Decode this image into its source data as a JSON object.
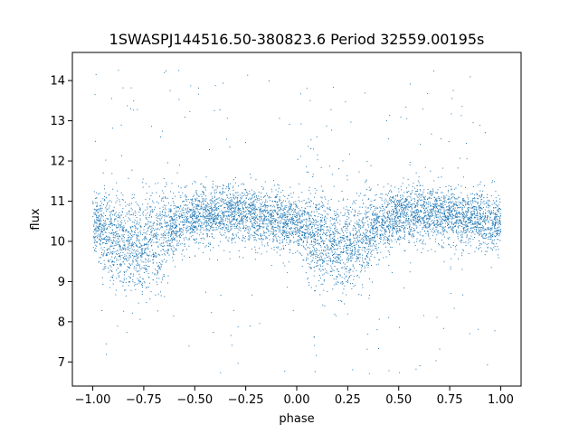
{
  "chart_data": {
    "type": "scatter",
    "title": "1SWASPJ144516.50-380823.6 Period 32559.00195s",
    "xlabel": "phase",
    "ylabel": "flux",
    "xlim": [
      -1.1,
      1.1
    ],
    "ylim": [
      6.4,
      14.7
    ],
    "xticks": [
      -1.0,
      -0.75,
      -0.5,
      -0.25,
      0.0,
      0.25,
      0.5,
      0.75,
      1.0
    ],
    "xtick_labels": [
      "−1.00",
      "−0.75",
      "−0.50",
      "−0.25",
      "0.00",
      "0.25",
      "0.50",
      "0.75",
      "1.00"
    ],
    "yticks": [
      7,
      8,
      9,
      10,
      11,
      12,
      13,
      14
    ],
    "ytick_labels": [
      "7",
      "8",
      "9",
      "10",
      "11",
      "12",
      "13",
      "14"
    ],
    "grid": false,
    "marker_color": "#1f77b4",
    "series": [
      {
        "profile": [
          {
            "phase": -1.0,
            "flux": 10.45
          },
          {
            "phase": -0.9,
            "flux": 10.1
          },
          {
            "phase": -0.8,
            "flux": 9.85
          },
          {
            "phase": -0.7,
            "flux": 10.05
          },
          {
            "phase": -0.6,
            "flux": 10.4
          },
          {
            "phase": -0.5,
            "flux": 10.65
          },
          {
            "phase": -0.4,
            "flux": 10.7
          },
          {
            "phase": -0.3,
            "flux": 10.7
          },
          {
            "phase": -0.2,
            "flux": 10.65
          },
          {
            "phase": -0.1,
            "flux": 10.55
          },
          {
            "phase": 0.0,
            "flux": 10.45
          },
          {
            "phase": 0.1,
            "flux": 10.1
          },
          {
            "phase": 0.2,
            "flux": 9.85
          },
          {
            "phase": 0.3,
            "flux": 10.05
          },
          {
            "phase": 0.4,
            "flux": 10.4
          },
          {
            "phase": 0.5,
            "flux": 10.65
          },
          {
            "phase": 0.6,
            "flux": 10.7
          },
          {
            "phase": 0.7,
            "flux": 10.7
          },
          {
            "phase": 0.8,
            "flux": 10.65
          },
          {
            "phase": 0.9,
            "flux": 10.55
          },
          {
            "phase": 1.0,
            "flux": 10.45
          }
        ],
        "scatter_sigma": 0.35,
        "outlier_range": [
          6.7,
          14.4
        ]
      }
    ]
  }
}
